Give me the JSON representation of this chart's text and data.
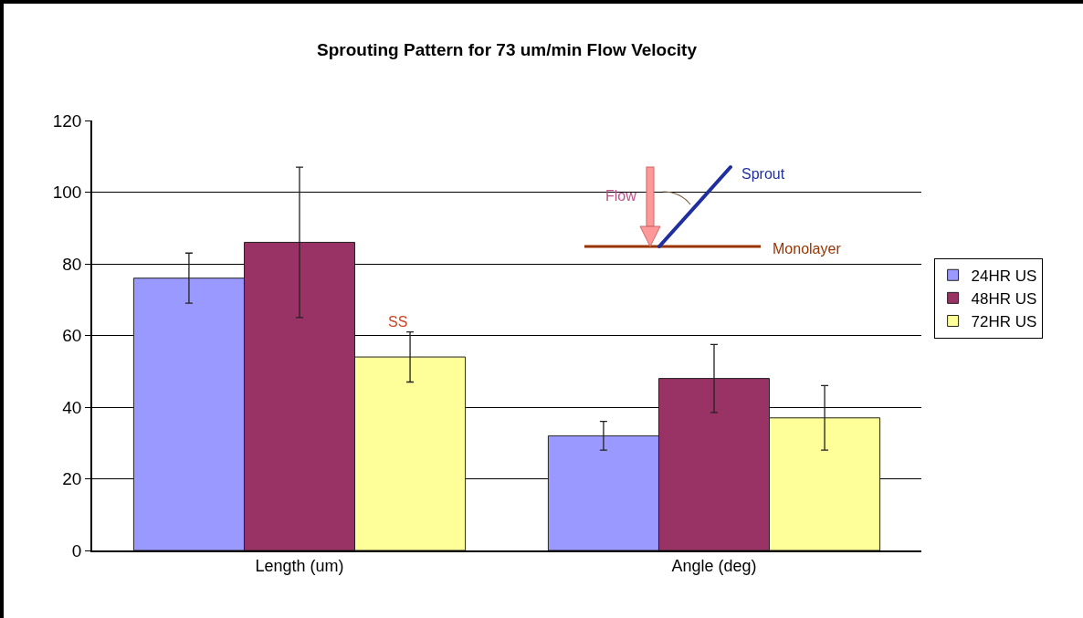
{
  "chart_data": {
    "type": "bar",
    "title": "Sprouting Pattern for 73 um/min Flow Velocity",
    "categories": [
      "Length (um)",
      "Angle (deg)"
    ],
    "series": [
      {
        "name": "24HR US",
        "color": "#9999ff",
        "values": [
          76,
          32
        ],
        "errors": [
          7,
          4
        ]
      },
      {
        "name": "48HR US",
        "color": "#993366",
        "values": [
          86,
          48
        ],
        "errors": [
          21,
          9.5
        ]
      },
      {
        "name": "72HR US",
        "color": "#ffff99",
        "values": [
          54,
          37
        ],
        "errors": [
          7,
          9
        ]
      }
    ],
    "ylim": [
      0,
      120
    ],
    "yticks": [
      0,
      20,
      40,
      60,
      80,
      100,
      120
    ],
    "grid": "y",
    "legend": "right",
    "annotations": [
      "Flow",
      "Sprout",
      "Monolayer",
      "SS"
    ]
  }
}
